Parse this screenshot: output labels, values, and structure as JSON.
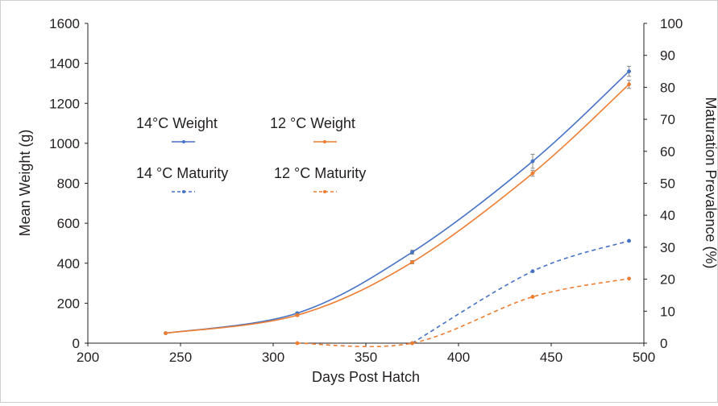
{
  "chart_data": {
    "type": "line",
    "xlabel": "Days Post Hatch",
    "ylabel": "Mean Weight (g)",
    "y2label": "Maturation Prevalence (%)",
    "xlim": [
      200,
      500
    ],
    "ylim": [
      0,
      1600
    ],
    "y2lim": [
      0,
      100
    ],
    "xticks": [
      "200",
      "250",
      "300",
      "350",
      "400",
      "450",
      "500"
    ],
    "yticks": [
      "0",
      "200",
      "400",
      "600",
      "800",
      "1000",
      "1200",
      "1400",
      "1600"
    ],
    "y2ticks": [
      "0",
      "10",
      "20",
      "30",
      "40",
      "50",
      "60",
      "70",
      "80",
      "90",
      "100"
    ],
    "grid": false,
    "legend_position": "upper-left",
    "series": [
      {
        "name": "14°C Weight",
        "axis": "left",
        "style": "solid",
        "color": "#4472c4",
        "x": [
          242,
          313,
          375,
          440,
          492
        ],
        "y": [
          50,
          150,
          455,
          910,
          1360
        ],
        "error": [
          0,
          5,
          10,
          35,
          25
        ]
      },
      {
        "name": "12 °C Weight",
        "axis": "left",
        "style": "solid",
        "color": "#ed7d31",
        "x": [
          242,
          313,
          375,
          440,
          492
        ],
        "y": [
          50,
          140,
          405,
          850,
          1295
        ],
        "error": [
          0,
          5,
          8,
          15,
          20
        ]
      },
      {
        "name": "14 °C Maturity",
        "axis": "right",
        "style": "dashed",
        "color": "#4472c4",
        "x": [
          375,
          440,
          492
        ],
        "y": [
          0,
          22.5,
          32
        ]
      },
      {
        "name": "12 °C Maturity",
        "axis": "right",
        "style": "dashed",
        "color": "#ed7d31",
        "x": [
          313,
          375,
          440,
          492
        ],
        "y": [
          0,
          0,
          14.5,
          20.2
        ]
      }
    ]
  }
}
